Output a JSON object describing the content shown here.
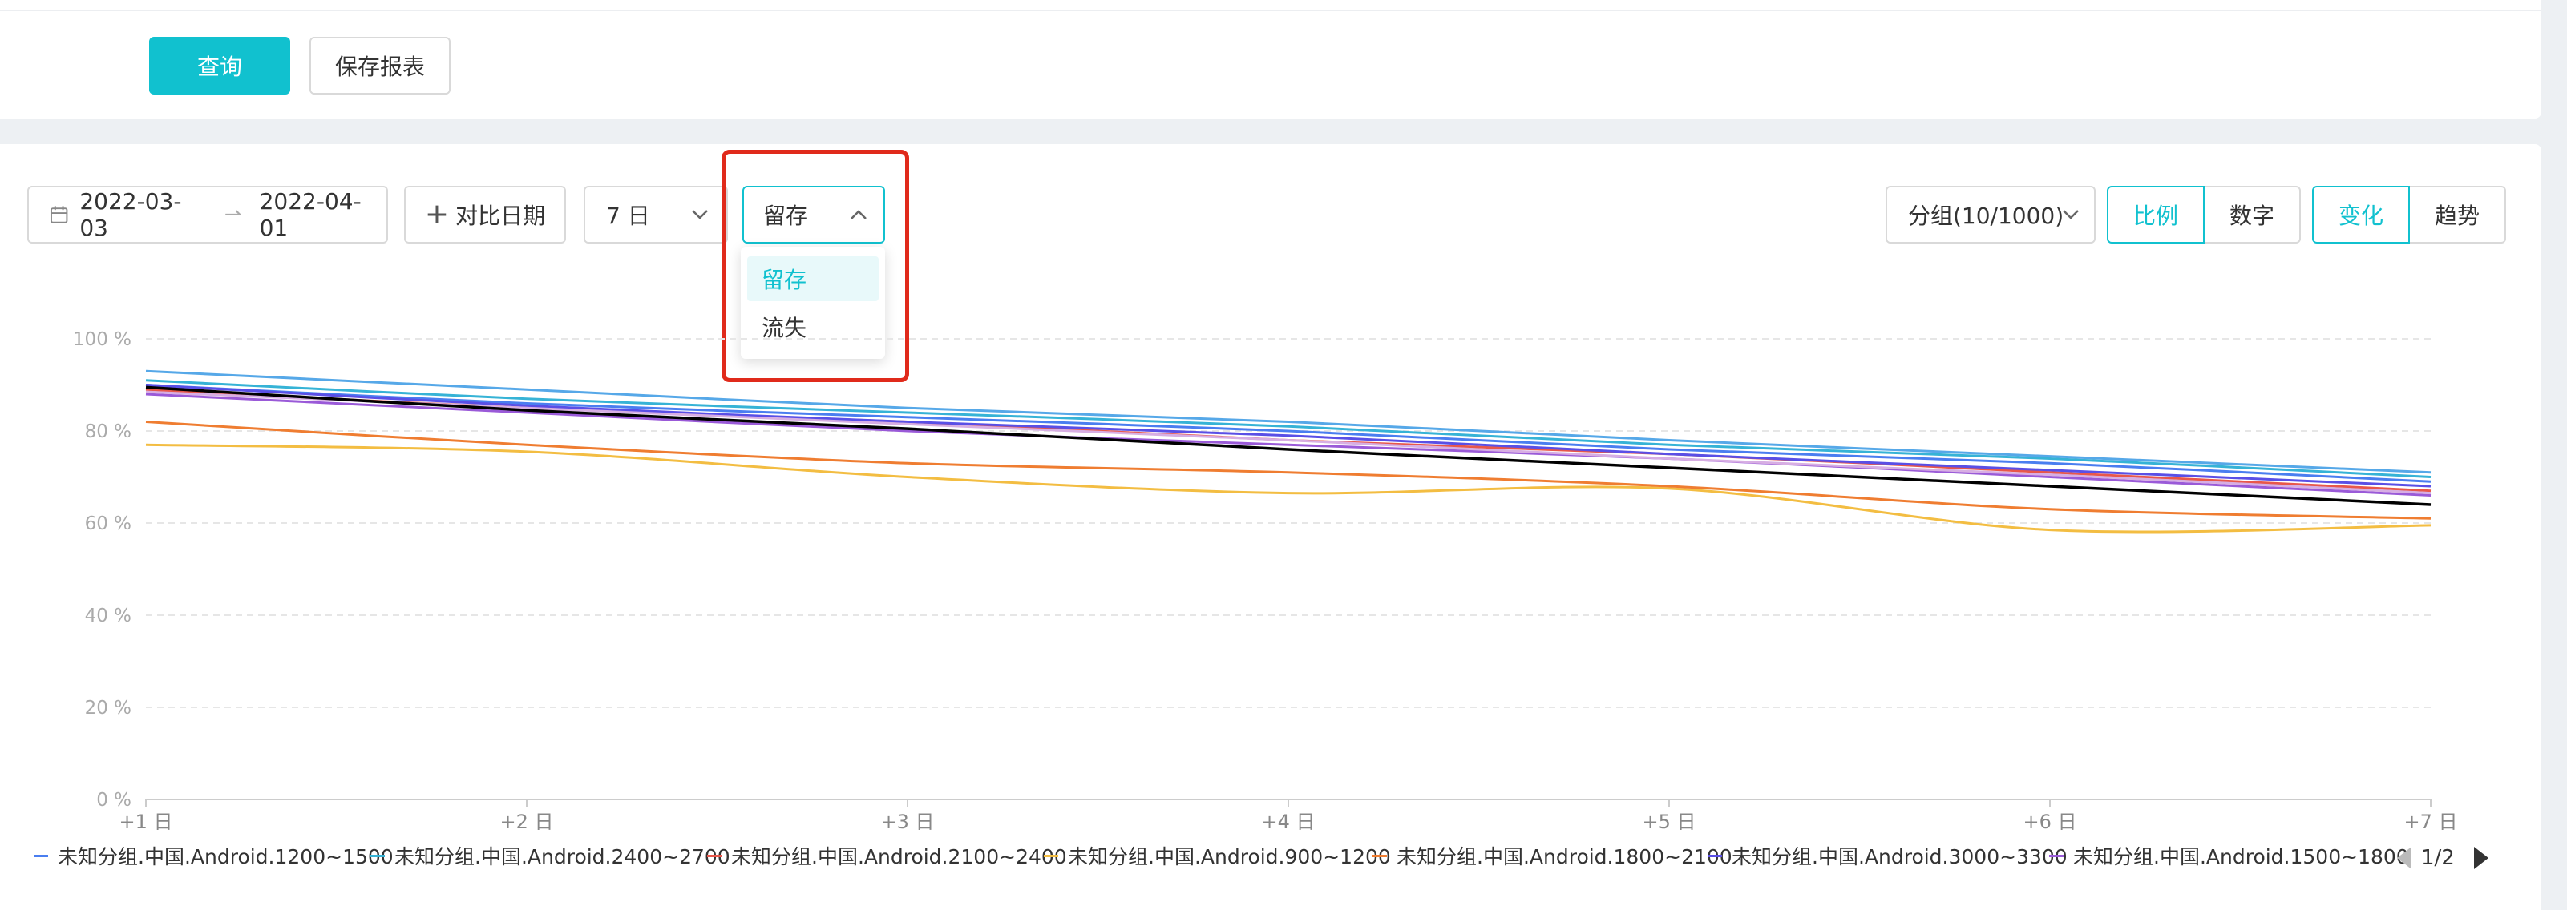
{
  "toolbar": {
    "query_label": "查询",
    "save_report_label": "保存报表"
  },
  "filters": {
    "date_start": "2022-03-03",
    "date_end": "2022-04-01",
    "compare_label": "对比日期",
    "days_value": "7 日",
    "metric_value": "留存",
    "metric_options": [
      "留存",
      "流失"
    ],
    "group_value": "分组(10/1000)",
    "view_ratio": "比例",
    "view_number": "数字",
    "mode_change": "变化",
    "mode_trend": "趋势"
  },
  "accent_color": "#11c1cf",
  "highlight_color": "#e02a1b",
  "pager": {
    "text": "1/2"
  },
  "chart_data": {
    "type": "line",
    "x": [
      "+1 日",
      "+2 日",
      "+3 日",
      "+4 日",
      "+5 日",
      "+6 日",
      "+7 日"
    ],
    "ylim": [
      0,
      100
    ],
    "yticks": [
      "0 %",
      "20 %",
      "40 %",
      "60 %",
      "80 %",
      "100 %"
    ],
    "grid": true,
    "legend_position": "bottom",
    "series": [
      {
        "name": "未知分组.中国.Android.1200~1500",
        "color": "#4a7ef0",
        "values": [
          90,
          86,
          83,
          80,
          76,
          73,
          69
        ]
      },
      {
        "name": "未知分组.中国.Android.2400~2700",
        "color": "#36b3d6",
        "values": [
          91,
          87,
          84,
          81,
          77,
          74,
          70
        ]
      },
      {
        "name": "未知分组.中国.Android.2100~2400",
        "color": "#e8574b",
        "values": [
          89,
          85,
          82,
          78,
          75,
          71,
          67
        ]
      },
      {
        "name": "未知分组.中国.Android.900~1200",
        "color": "#f3bd42",
        "values": [
          77,
          75.5,
          70,
          66.5,
          67.5,
          58.5,
          59.5
        ]
      },
      {
        "name": "未知分组.中国.Android.1800~2100",
        "color": "#ef7d31",
        "values": [
          82,
          77,
          73,
          71,
          68,
          63,
          61
        ]
      },
      {
        "name": "未知分组.中国.Android.3000~3300",
        "color": "#5a4fe6",
        "values": [
          90,
          85.5,
          82,
          79,
          75,
          71.5,
          68
        ]
      },
      {
        "name": "未知分组.中国.Android.1500~1800",
        "color": "#9a5ad8",
        "values": [
          88,
          84,
          80,
          77,
          74,
          70,
          66
        ]
      },
      {
        "color": "#56a8e8",
        "values": [
          93,
          89,
          85,
          82,
          78,
          74.5,
          71
        ]
      },
      {
        "color": "#d7aee3",
        "values": [
          88.5,
          85,
          81.5,
          78,
          74,
          70.5,
          66.5
        ]
      },
      {
        "color": "#000000",
        "values": [
          89.5,
          84.5,
          80.5,
          76,
          72,
          68,
          64
        ]
      }
    ]
  }
}
